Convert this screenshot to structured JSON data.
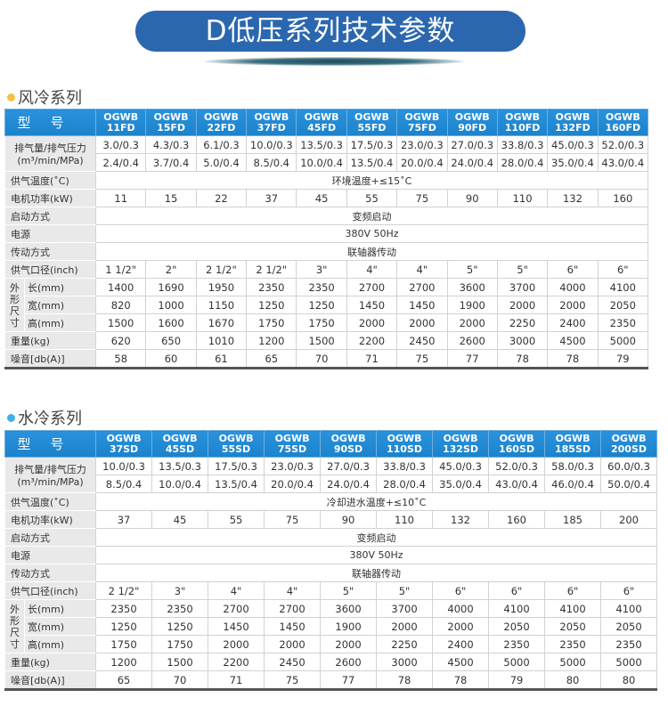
{
  "page_title": "D低压系列技术参数",
  "colors": {
    "title_bg": "#2b67ae",
    "header_bg": "#1f88d2",
    "label_bg": "#e9e9e9",
    "air_dot": "#f5bf4a",
    "water_dot": "#3fb1e8"
  },
  "tables": [
    {
      "section_title": "风冷系列",
      "model_label": "型号",
      "models": [
        [
          "OGWB",
          "11FD"
        ],
        [
          "OGWB",
          "15FD"
        ],
        [
          "OGWB",
          "22FD"
        ],
        [
          "OGWB",
          "37FD"
        ],
        [
          "OGWB",
          "45FD"
        ],
        [
          "OGWB",
          "55FD"
        ],
        [
          "OGWB",
          "75FD"
        ],
        [
          "OGWB",
          "90FD"
        ],
        [
          "OGWB",
          "110FD"
        ],
        [
          "OGWB",
          "132FD"
        ],
        [
          "OGWB",
          "160FD"
        ]
      ],
      "pressure_label": [
        "排气量/排气压力",
        "(m³/min/MPa)"
      ],
      "pressure_row1": [
        "3.0/0.3",
        "4.3/0.3",
        "6.1/0.3",
        "10.0/0.3",
        "13.5/0.3",
        "17.5/0.3",
        "23.0/0.3",
        "27.0/0.3",
        "33.8/0.3",
        "45.0/0.3",
        "52.0/0.3"
      ],
      "pressure_row2": [
        "2.4/0.4",
        "3.7/0.4",
        "5.0/0.4",
        "8.5/0.4",
        "10.0/0.4",
        "13.5/0.4",
        "20.0/0.4",
        "24.0/0.4",
        "28.0/0.4",
        "35.0/0.4",
        "43.0/0.4"
      ],
      "temp_label": "供气温度(˚C)",
      "temp_value": "环境温度+≤15˚C",
      "motor_label": "电机功率(kW)",
      "motor": [
        "11",
        "15",
        "22",
        "37",
        "45",
        "55",
        "75",
        "90",
        "110",
        "132",
        "160"
      ],
      "start_label": "启动方式",
      "start_value": "变频启动",
      "power_label": "电源",
      "power_value": "380V  50Hz",
      "drive_label": "传动方式",
      "drive_value": "联轴器传动",
      "diameter_label": "供气口径(inch)",
      "diameter": [
        "1 1/2\"",
        "2\"",
        "2 1/2\"",
        "2 1/2\"",
        "3\"",
        "4\"",
        "4\"",
        "5\"",
        "5\"",
        "6\"",
        "6\""
      ],
      "dims_label": "外形尺寸",
      "length_label": "长(mm)",
      "length": [
        "1400",
        "1690",
        "1950",
        "2350",
        "2350",
        "2700",
        "2700",
        "3600",
        "3700",
        "4000",
        "4100"
      ],
      "width_label": "宽(mm)",
      "width": [
        "820",
        "1000",
        "1150",
        "1250",
        "1250",
        "1450",
        "1450",
        "1900",
        "2000",
        "2000",
        "2050"
      ],
      "height_label": "高(mm)",
      "height": [
        "1500",
        "1600",
        "1670",
        "1750",
        "1750",
        "2000",
        "2000",
        "2000",
        "2250",
        "2400",
        "2350"
      ],
      "weight_label": "重量(kg)",
      "weight": [
        "620",
        "650",
        "1010",
        "1200",
        "1500",
        "2200",
        "2450",
        "2600",
        "3000",
        "4500",
        "5000"
      ],
      "noise_label": "噪音[db(A)]",
      "noise": [
        "58",
        "60",
        "61",
        "65",
        "70",
        "71",
        "75",
        "77",
        "78",
        "78",
        "79"
      ]
    },
    {
      "section_title": "水冷系列",
      "model_label": "型号",
      "models": [
        [
          "OGWB",
          "37SD"
        ],
        [
          "OGWB",
          "45SD"
        ],
        [
          "OGWB",
          "55SD"
        ],
        [
          "OGWB",
          "75SD"
        ],
        [
          "OGWB",
          "90SD"
        ],
        [
          "OGWB",
          "110SD"
        ],
        [
          "OGWB",
          "132SD"
        ],
        [
          "OGWB",
          "160SD"
        ],
        [
          "OGWB",
          "185SD"
        ],
        [
          "OGWB",
          "200SD"
        ]
      ],
      "pressure_label": [
        "排气量/排气压力",
        "(m³/min/MPa)"
      ],
      "pressure_row1": [
        "10.0/0.3",
        "13.5/0.3",
        "17.5/0.3",
        "23.0/0.3",
        "27.0/0.3",
        "33.8/0.3",
        "45.0/0.3",
        "52.0/0.3",
        "58.0/0.3",
        "60.0/0.3"
      ],
      "pressure_row2": [
        "8.5/0.4",
        "10.0/0.4",
        "13.5/0.4",
        "20.0/0.4",
        "24.0/0.4",
        "28.0/0.4",
        "35.0/0.4",
        "43.0/0.4",
        "46.0/0.4",
        "50.0/0.4"
      ],
      "temp_label": "供气温度(˚C)",
      "temp_value": "冷却进水温度+≤10˚C",
      "motor_label": "电机功率(kW)",
      "motor": [
        "37",
        "45",
        "55",
        "75",
        "90",
        "110",
        "132",
        "160",
        "185",
        "200"
      ],
      "start_label": "启动方式",
      "start_value": "变频启动",
      "power_label": "电源",
      "power_value": "380V  50Hz",
      "drive_label": "传动方式",
      "drive_value": "联轴器传动",
      "diameter_label": "供气口径(inch)",
      "diameter": [
        "2 1/2\"",
        "3\"",
        "4\"",
        "4\"",
        "5\"",
        "5\"",
        "6\"",
        "6\"",
        "6\"",
        "6\""
      ],
      "dims_label": "外形尺寸",
      "length_label": "长(mm)",
      "length": [
        "2350",
        "2350",
        "2700",
        "2700",
        "3600",
        "3700",
        "4000",
        "4100",
        "4100",
        "4100"
      ],
      "width_label": "宽(mm)",
      "width": [
        "1250",
        "1250",
        "1450",
        "1450",
        "1900",
        "2000",
        "2000",
        "2050",
        "2050",
        "2050"
      ],
      "height_label": "高(mm)",
      "height": [
        "1750",
        "1750",
        "2000",
        "2000",
        "2000",
        "2250",
        "2400",
        "2350",
        "2350",
        "2350"
      ],
      "weight_label": "重量(kg)",
      "weight": [
        "1200",
        "1500",
        "2200",
        "2450",
        "2600",
        "3000",
        "4500",
        "5000",
        "5000",
        "5000"
      ],
      "noise_label": "噪音[db(A)]",
      "noise": [
        "65",
        "70",
        "71",
        "75",
        "77",
        "78",
        "78",
        "79",
        "80",
        "80"
      ]
    }
  ]
}
